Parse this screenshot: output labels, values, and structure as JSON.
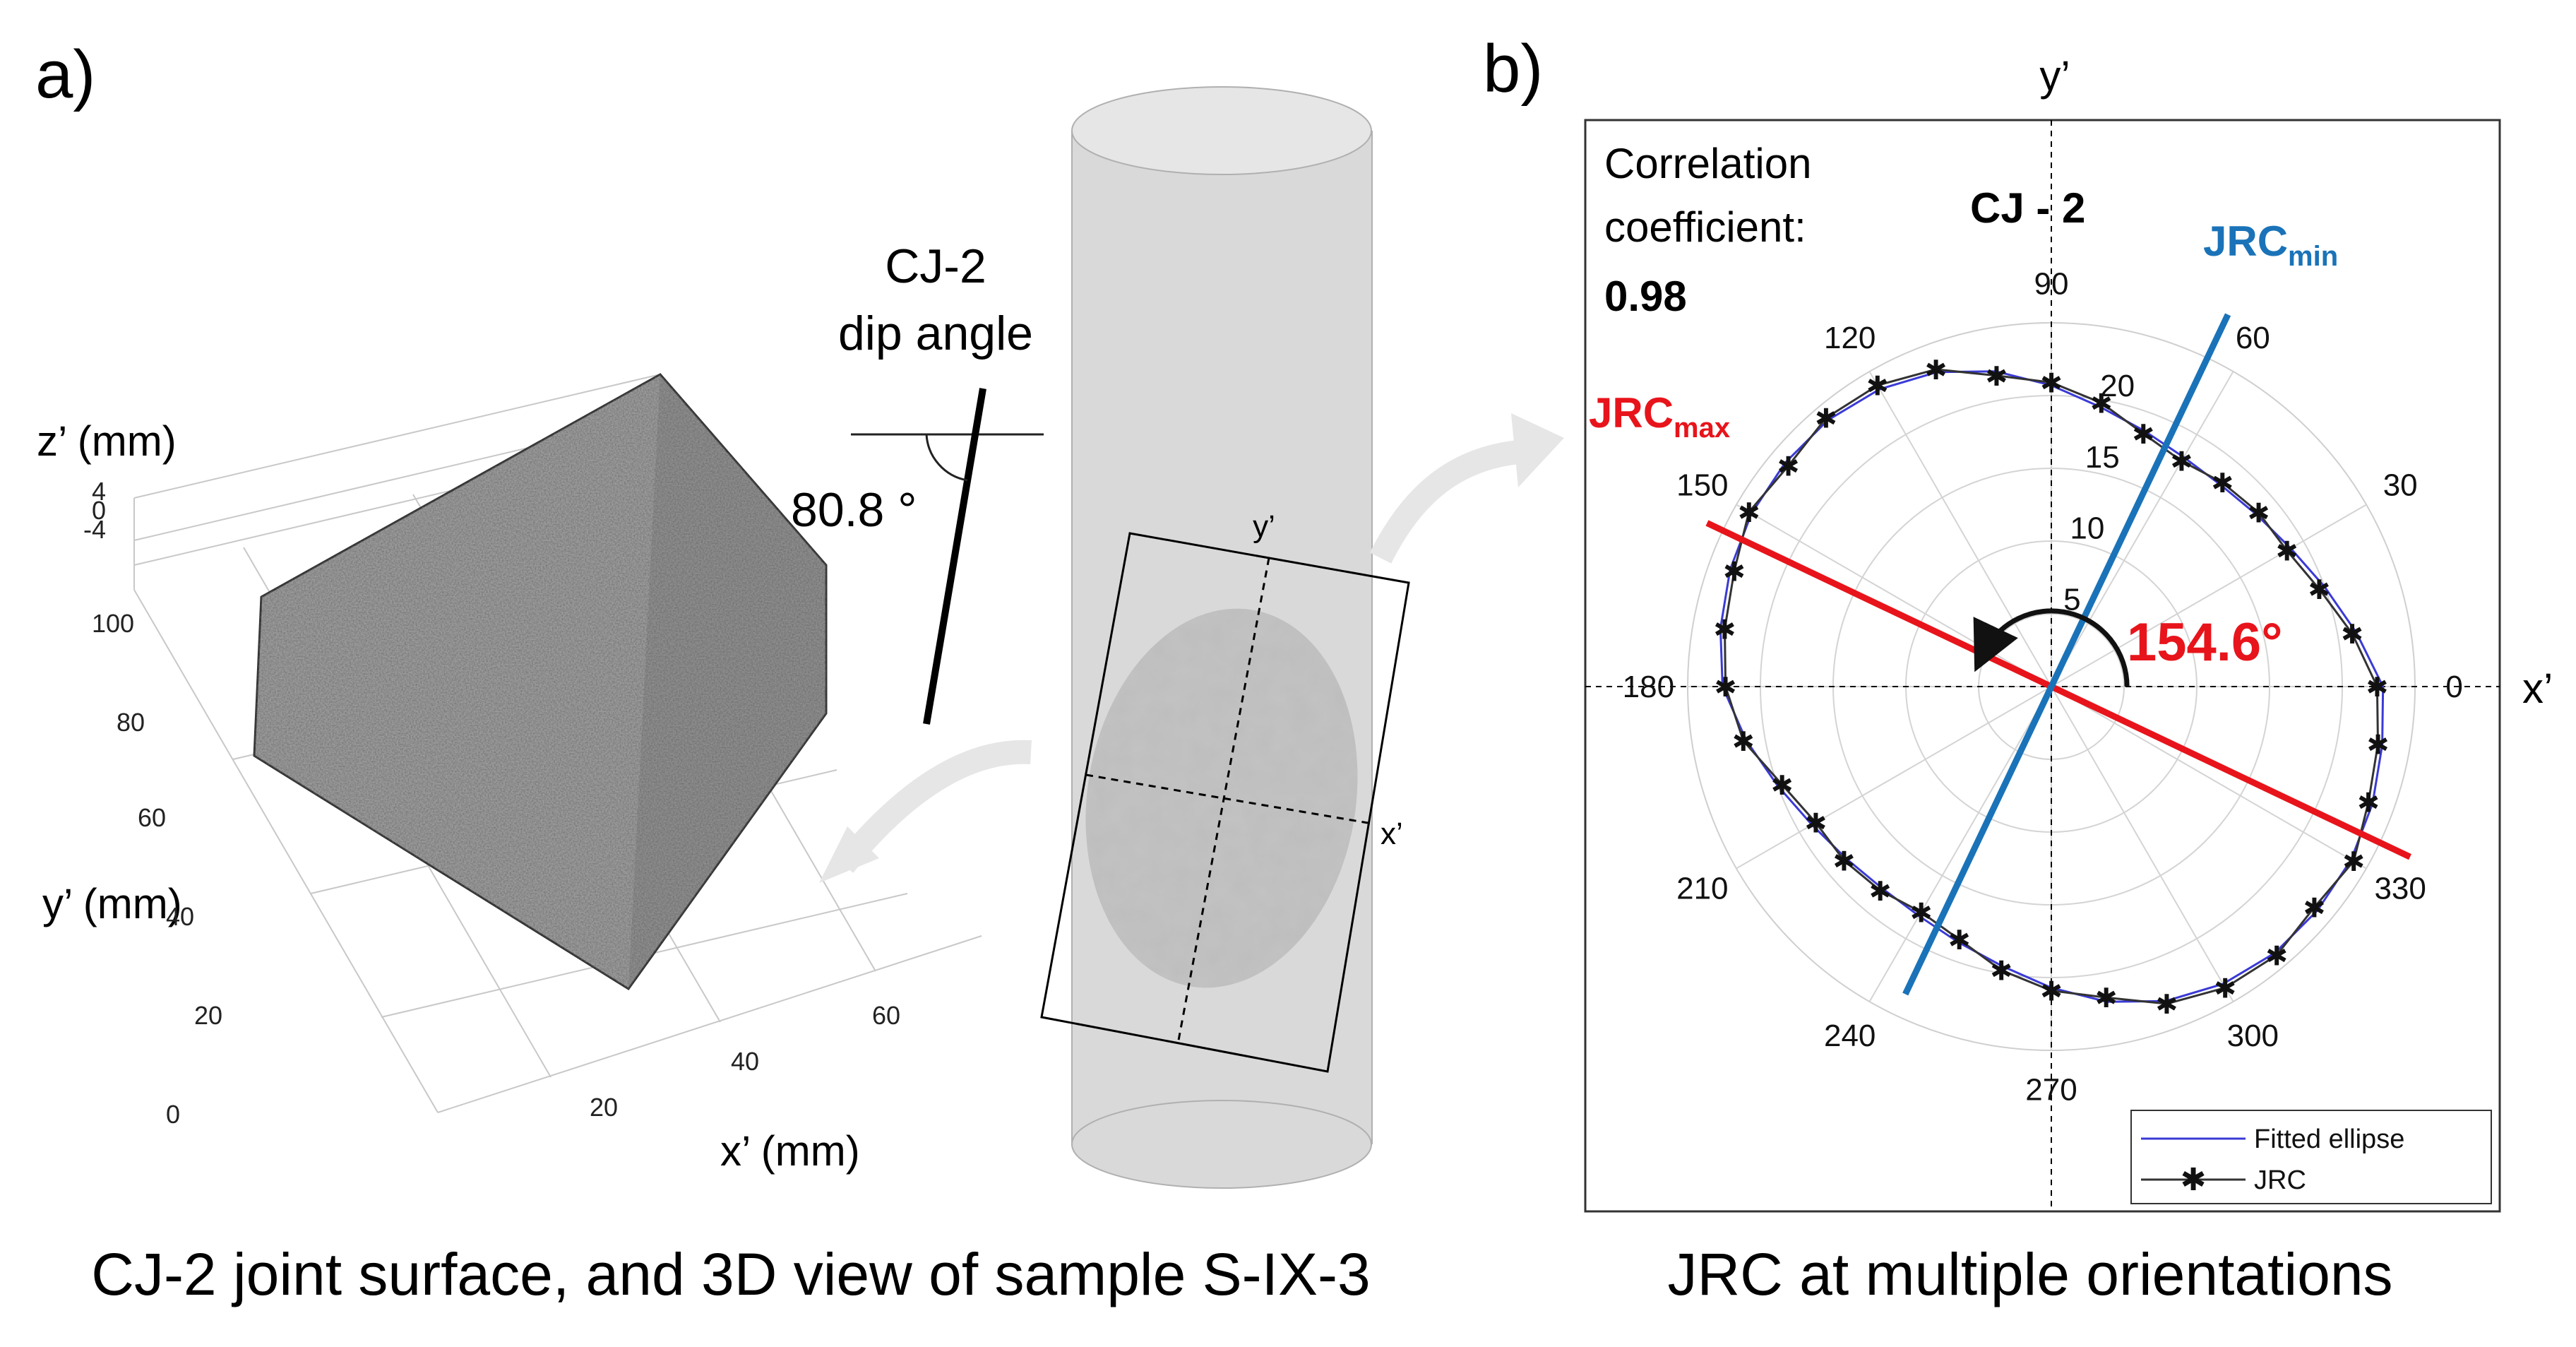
{
  "panel_a": {
    "letter": "a)",
    "caption": "CJ-2 joint surface, and 3D view of sample S-IX-3",
    "dip_title_line1": "CJ-2",
    "dip_title_line2": "dip angle",
    "dip_angle": "80.8 °",
    "axis_z": "z’ (mm)",
    "axis_y": "y’ (mm)",
    "axis_x": "x’ (mm)",
    "z_ticks": [
      "4",
      "0",
      "-4"
    ],
    "y_ticks": [
      "100",
      "80",
      "60",
      "40",
      "20",
      "0"
    ],
    "x_ticks": [
      "20",
      "40",
      "60"
    ],
    "plane_y": "y’",
    "plane_x": "x’"
  },
  "panel_b": {
    "letter": "b)",
    "caption": "JRC at multiple orientations",
    "axis_top": "y’",
    "axis_right": "x’",
    "corr_line1": "Correlation",
    "corr_line2": "coefficient:",
    "corr_value": "0.98",
    "sample_label": "CJ - 2",
    "jrc_min_base": "JRC",
    "jrc_min_sub": "min",
    "jrc_max_base": "JRC",
    "jrc_max_sub": "max",
    "rotation_angle": "154.6°",
    "legend": [
      "Fitted ellipse",
      "JRC"
    ]
  },
  "colors": {
    "jrc_max_line": "#e8141b",
    "jrc_min_line": "#1a73b8",
    "fitted_ellipse": "#3a3ad6",
    "jrc_series": "#333333",
    "rotation_label": "#e8141b",
    "cylinder_fill": "#d9d9d9"
  },
  "chart_data": {
    "type": "polar",
    "angle_ticks": [
      0,
      30,
      60,
      90,
      120,
      150,
      180,
      210,
      240,
      270,
      300,
      330
    ],
    "radial_ticks": [
      5,
      10,
      15,
      20
    ],
    "r_max": 25,
    "angle_unit": "deg",
    "jrc_max_direction": 154.6,
    "jrc_min_direction": 64.6,
    "correlation_coefficient": 0.98,
    "ellipse_semi_major": 23.9,
    "ellipse_semi_minor": 18.1,
    "series": [
      {
        "name": "Fitted ellipse",
        "theta": [
          0,
          10,
          20,
          30,
          40,
          50,
          60,
          70,
          80,
          90,
          100,
          110,
          120,
          130,
          140,
          150,
          160,
          170,
          180,
          190,
          200,
          210,
          220,
          230,
          240,
          250,
          260,
          270,
          280,
          290,
          300,
          310,
          320,
          330,
          340,
          350
        ],
        "r": [
          22.8,
          21.3,
          20.0,
          19.0,
          18.4,
          18.1,
          18.2,
          18.7,
          19.5,
          20.7,
          22.0,
          23.0,
          23.6,
          23.9,
          23.9,
          23.8,
          23.5,
          23.1,
          22.6,
          21.3,
          20.0,
          19.0,
          18.4,
          18.1,
          18.2,
          18.7,
          19.5,
          20.7,
          22.0,
          23.0,
          23.6,
          23.9,
          23.9,
          23.8,
          23.5,
          23.1
        ]
      },
      {
        "name": "JRC",
        "theta": [
          0,
          10,
          20,
          30,
          40,
          50,
          60,
          70,
          80,
          90,
          100,
          110,
          120,
          130,
          140,
          150,
          160,
          170,
          180,
          190,
          200,
          210,
          220,
          230,
          240,
          250,
          260,
          270,
          280,
          290,
          300,
          310,
          320,
          330,
          340,
          350
        ],
        "r": [
          22.4,
          21.0,
          19.6,
          18.7,
          18.6,
          18.3,
          17.9,
          18.5,
          19.8,
          20.9,
          21.7,
          23.2,
          23.9,
          24.1,
          23.6,
          24.0,
          23.2,
          22.8,
          22.4,
          21.5,
          19.7,
          18.7,
          18.6,
          18.3,
          17.9,
          18.5,
          19.8,
          20.9,
          21.7,
          23.2,
          23.9,
          24.1,
          23.6,
          24.0,
          23.2,
          22.8
        ]
      }
    ]
  }
}
